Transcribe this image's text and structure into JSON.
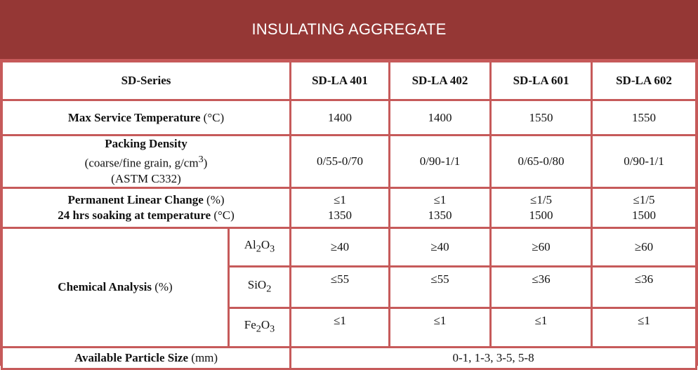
{
  "title": "INSULATING AGGREGATE",
  "header": {
    "series_label": "SD-Series",
    "products": [
      "SD-LA 401",
      "SD-LA 402",
      "SD-LA 601",
      "SD-LA 602"
    ]
  },
  "max_service_temp": {
    "label": "Max Service Temperature",
    "unit": "(°C)",
    "values": [
      "1400",
      "1400",
      "1550",
      "1550"
    ]
  },
  "packing_density": {
    "label": "Packing Density",
    "line2": "(coarse/fine grain, g/cm",
    "line2_sup": "3",
    "line2_end": ")",
    "line3": "(ASTM C332)",
    "values": [
      "0/55-0/70",
      "0/90-1/1",
      "0/65-0/80",
      "0/90-1/1"
    ]
  },
  "linear_change": {
    "label": "Permanent Linear Change",
    "label_unit": "(%)",
    "line2": "24 hrs soaking at temperature",
    "line2_unit": "(°C)",
    "changes": [
      "≤1",
      "≤1",
      "≤1/5",
      "≤1/5"
    ],
    "temps": [
      "1350",
      "1350",
      "1500",
      "1500"
    ]
  },
  "chemical": {
    "label": "Chemical Analysis",
    "unit": "(%)",
    "al2o3": {
      "sym_a": "Al",
      "sub_a": "2",
      "sym_b": "O",
      "sub_b": "3",
      "values": [
        "≥40",
        "≥40",
        "≥60",
        "≥60"
      ]
    },
    "sio2": {
      "sym_a": "SiO",
      "sub_a": "2",
      "values": [
        "≤55",
        "≤55",
        "≤36",
        "≤36"
      ]
    },
    "fe2o3": {
      "sym_a": "Fe",
      "sub_a": "2",
      "sym_b": "O",
      "sub_b": "3",
      "values": [
        "≤1",
        "≤1",
        "≤1",
        "≤1"
      ]
    }
  },
  "particle_size": {
    "label": "Available Particle Size",
    "unit": "(mm)",
    "value": "0-1, 1-3, 3-5, 5-8"
  },
  "colors": {
    "title_bg": "#953735",
    "grid": "#c65a5a",
    "cell_bg": "#ffffff",
    "text": "#111111"
  }
}
